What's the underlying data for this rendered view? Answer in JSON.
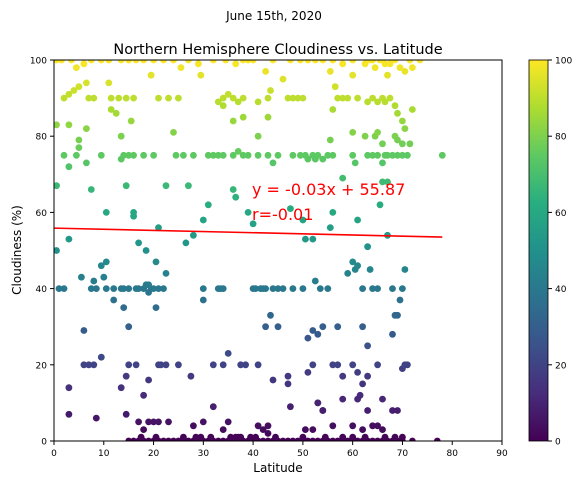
{
  "figure": {
    "suptitle": "June 15th, 2020"
  },
  "chart_data": {
    "type": "scatter",
    "title": "Northern Hemisphere Cloudiness vs. Latitude",
    "xlabel": "Latitude",
    "ylabel": "Cloudiness (%)",
    "xlim": [
      0,
      90
    ],
    "ylim": [
      0,
      100
    ],
    "xticks": [
      0,
      10,
      20,
      30,
      40,
      50,
      60,
      70,
      80,
      90
    ],
    "yticks": [
      0,
      20,
      40,
      60,
      80,
      100
    ],
    "grid": false,
    "colormap": "viridis",
    "colorbar": {
      "range": [
        0,
        100
      ],
      "ticks": [
        0,
        20,
        40,
        60,
        80,
        100
      ]
    },
    "point_color": "value of y (Cloudiness) mapped through viridis",
    "regression": {
      "slope": -0.03,
      "intercept": 55.87,
      "x_range": [
        0,
        78
      ],
      "color": "#ff0000",
      "equation_label": "y = -0.03x + 55.87",
      "r_label": "r=-0.01",
      "label_color": "#ff0000"
    },
    "points": [
      [
        0.5,
        100
      ],
      [
        1.5,
        100
      ],
      [
        3.5,
        100
      ],
      [
        4.5,
        98
      ],
      [
        6,
        99
      ],
      [
        7.5,
        100
      ],
      [
        9.5,
        100
      ],
      [
        11,
        100
      ],
      [
        13.5,
        100
      ],
      [
        15,
        100
      ],
      [
        16.5,
        100
      ],
      [
        18,
        100
      ],
      [
        20,
        100
      ],
      [
        22,
        100
      ],
      [
        24,
        100
      ],
      [
        25.5,
        98
      ],
      [
        27,
        100
      ],
      [
        29,
        99
      ],
      [
        32,
        100
      ],
      [
        34.5,
        100
      ],
      [
        36.5,
        99
      ],
      [
        38,
        100
      ],
      [
        40,
        100
      ],
      [
        42.5,
        97
      ],
      [
        44,
        100
      ],
      [
        46,
        95
      ],
      [
        47.5,
        100
      ],
      [
        49.5,
        100
      ],
      [
        51,
        100
      ],
      [
        52.5,
        100
      ],
      [
        54,
        100
      ],
      [
        56,
        100
      ],
      [
        58,
        99
      ],
      [
        60,
        100
      ],
      [
        62.5,
        99
      ],
      [
        63.5,
        100
      ],
      [
        64.5,
        98
      ],
      [
        65.5,
        100
      ],
      [
        66.5,
        99
      ],
      [
        67.5,
        99
      ],
      [
        68.5,
        100
      ],
      [
        69.5,
        98
      ],
      [
        70.5,
        97
      ],
      [
        71.5,
        100
      ],
      [
        72,
        98
      ],
      [
        73.5,
        100
      ],
      [
        55.5,
        97
      ],
      [
        60,
        96
      ],
      [
        64,
        100
      ],
      [
        39,
        100
      ],
      [
        2,
        90
      ],
      [
        3,
        91
      ],
      [
        4,
        92
      ],
      [
        5,
        93
      ],
      [
        6.5,
        94
      ],
      [
        7,
        90
      ],
      [
        8,
        90
      ],
      [
        11.5,
        90
      ],
      [
        14.5,
        90
      ],
      [
        16,
        90
      ],
      [
        21,
        90
      ],
      [
        23,
        90
      ],
      [
        25,
        90
      ],
      [
        33,
        89
      ],
      [
        34,
        90
      ],
      [
        35,
        91
      ],
      [
        36,
        90
      ],
      [
        37,
        89
      ],
      [
        38,
        90
      ],
      [
        41,
        89
      ],
      [
        43,
        90
      ],
      [
        47,
        90
      ],
      [
        48,
        90
      ],
      [
        49,
        90
      ],
      [
        50,
        90
      ],
      [
        56,
        87
      ],
      [
        57,
        90
      ],
      [
        58,
        90
      ],
      [
        59,
        90
      ],
      [
        61,
        90
      ],
      [
        63,
        89
      ],
      [
        64,
        90
      ],
      [
        65,
        89
      ],
      [
        66,
        90
      ],
      [
        66.5,
        89
      ],
      [
        67.5,
        90
      ],
      [
        68.5,
        88
      ],
      [
        69,
        86
      ],
      [
        70,
        84
      ],
      [
        70.5,
        82
      ],
      [
        72,
        87
      ],
      [
        11,
        94
      ],
      [
        13,
        90
      ],
      [
        19.5,
        96
      ],
      [
        29.5,
        96
      ],
      [
        43.5,
        92
      ],
      [
        56.5,
        93
      ],
      [
        67,
        96
      ],
      [
        0.5,
        83
      ],
      [
        3,
        83
      ],
      [
        5,
        79
      ],
      [
        6.5,
        82
      ],
      [
        11.5,
        87
      ],
      [
        12.5,
        86
      ],
      [
        13.5,
        80
      ],
      [
        15.5,
        84
      ],
      [
        24,
        81
      ],
      [
        34,
        88
      ],
      [
        36,
        84
      ],
      [
        38,
        85
      ],
      [
        41,
        80
      ],
      [
        43,
        85
      ],
      [
        60,
        81
      ],
      [
        62.5,
        80
      ],
      [
        64.5,
        80
      ],
      [
        65,
        81
      ],
      [
        66,
        78
      ],
      [
        68.5,
        80
      ],
      [
        69,
        79
      ],
      [
        70,
        78
      ],
      [
        71.5,
        78
      ],
      [
        55.5,
        79
      ],
      [
        2,
        75
      ],
      [
        3,
        72
      ],
      [
        4.5,
        75
      ],
      [
        5,
        77
      ],
      [
        6.5,
        73
      ],
      [
        9.5,
        75
      ],
      [
        13.5,
        74
      ],
      [
        14,
        75
      ],
      [
        15,
        75
      ],
      [
        16,
        75
      ],
      [
        18,
        75
      ],
      [
        20,
        75
      ],
      [
        24.5,
        75
      ],
      [
        26,
        75
      ],
      [
        28,
        75
      ],
      [
        31,
        75
      ],
      [
        32,
        75
      ],
      [
        33,
        75
      ],
      [
        34,
        75
      ],
      [
        36,
        75
      ],
      [
        37,
        76
      ],
      [
        38,
        75
      ],
      [
        39,
        75
      ],
      [
        41,
        75
      ],
      [
        43,
        75
      ],
      [
        45,
        75
      ],
      [
        48,
        75
      ],
      [
        49.5,
        75
      ],
      [
        50.5,
        75
      ],
      [
        51,
        74
      ],
      [
        52,
        75
      ],
      [
        52.5,
        74
      ],
      [
        53,
        75
      ],
      [
        54,
        74
      ],
      [
        55,
        75
      ],
      [
        56,
        75
      ],
      [
        60,
        75
      ],
      [
        60.5,
        73
      ],
      [
        63,
        75
      ],
      [
        64,
        75
      ],
      [
        65,
        75
      ],
      [
        66,
        73
      ],
      [
        66.5,
        75
      ],
      [
        67,
        75
      ],
      [
        68,
        75
      ],
      [
        69,
        75
      ],
      [
        70,
        75
      ],
      [
        71,
        75
      ],
      [
        78,
        75
      ],
      [
        7.5,
        66
      ],
      [
        14.5,
        67
      ],
      [
        22.5,
        67
      ],
      [
        36,
        66
      ],
      [
        36.5,
        64
      ],
      [
        44,
        73
      ],
      [
        10.5,
        60
      ],
      [
        16,
        60
      ],
      [
        30,
        58
      ],
      [
        31,
        62
      ],
      [
        39,
        60
      ],
      [
        40,
        57
      ],
      [
        47.5,
        61
      ],
      [
        50,
        58
      ],
      [
        56,
        60
      ],
      [
        58,
        69
      ],
      [
        65.5,
        62
      ],
      [
        66,
        68
      ],
      [
        67,
        68
      ],
      [
        61,
        58
      ],
      [
        0.5,
        67
      ],
      [
        27,
        67
      ],
      [
        16,
        59
      ],
      [
        0.5,
        50
      ],
      [
        3,
        53
      ],
      [
        5.5,
        43
      ],
      [
        7.5,
        40
      ],
      [
        8.5,
        40
      ],
      [
        9.5,
        46
      ],
      [
        10,
        43
      ],
      [
        10.5,
        47
      ],
      [
        12,
        40
      ],
      [
        13.5,
        40
      ],
      [
        14,
        35
      ],
      [
        15,
        40
      ],
      [
        17,
        40
      ],
      [
        18,
        40
      ],
      [
        18.5,
        41
      ],
      [
        19.5,
        40
      ],
      [
        20,
        40
      ],
      [
        20.5,
        47
      ],
      [
        21,
        40
      ],
      [
        22,
        40
      ],
      [
        22.5,
        44
      ],
      [
        26.5,
        52
      ],
      [
        28,
        54
      ],
      [
        30,
        40
      ],
      [
        33,
        40
      ],
      [
        33.5,
        40
      ],
      [
        34,
        40
      ],
      [
        40.5,
        40
      ],
      [
        41.5,
        40
      ],
      [
        42.5,
        40
      ],
      [
        44,
        40
      ],
      [
        45,
        40
      ],
      [
        46,
        40
      ],
      [
        48,
        40
      ],
      [
        50,
        40
      ],
      [
        50.5,
        53
      ],
      [
        52,
        53
      ],
      [
        52.5,
        42
      ],
      [
        53.5,
        40
      ],
      [
        55,
        40
      ],
      [
        55.5,
        56
      ],
      [
        59,
        44
      ],
      [
        60,
        47
      ],
      [
        60.5,
        45
      ],
      [
        61,
        46
      ],
      [
        62,
        40
      ],
      [
        63,
        51
      ],
      [
        63.5,
        45
      ],
      [
        64,
        40
      ],
      [
        65,
        40
      ],
      [
        67,
        54
      ],
      [
        68,
        40
      ],
      [
        69,
        33
      ],
      [
        69.5,
        37
      ],
      [
        70,
        40
      ],
      [
        70.5,
        45
      ],
      [
        2,
        40
      ],
      [
        1,
        40
      ],
      [
        8,
        42
      ],
      [
        17,
        52
      ],
      [
        18.5,
        50
      ],
      [
        19,
        41
      ],
      [
        20.5,
        35
      ],
      [
        21,
        56
      ],
      [
        42,
        40
      ],
      [
        16.5,
        40
      ],
      [
        19,
        39
      ],
      [
        10.5,
        40
      ],
      [
        14,
        40
      ],
      [
        40,
        40
      ],
      [
        6,
        29
      ],
      [
        15,
        30
      ],
      [
        30,
        37
      ],
      [
        42.5,
        30
      ],
      [
        43.5,
        33
      ],
      [
        45,
        30
      ],
      [
        51,
        27
      ],
      [
        52,
        29
      ],
      [
        53,
        28
      ],
      [
        54,
        30
      ],
      [
        57,
        30
      ],
      [
        62,
        30
      ],
      [
        63,
        25
      ],
      [
        68,
        28
      ],
      [
        68.5,
        33
      ],
      [
        12,
        37
      ],
      [
        6,
        20
      ],
      [
        7,
        20
      ],
      [
        8,
        20
      ],
      [
        9.5,
        22
      ],
      [
        13.5,
        14
      ],
      [
        14.5,
        17
      ],
      [
        15,
        20
      ],
      [
        16.5,
        20
      ],
      [
        18,
        12
      ],
      [
        19,
        16
      ],
      [
        21,
        20
      ],
      [
        21.5,
        20
      ],
      [
        27.5,
        17
      ],
      [
        32,
        20
      ],
      [
        34,
        20
      ],
      [
        35,
        23
      ],
      [
        37.5,
        20
      ],
      [
        38.5,
        20
      ],
      [
        41,
        20
      ],
      [
        47,
        17
      ],
      [
        51,
        18
      ],
      [
        52,
        20
      ],
      [
        53,
        10
      ],
      [
        54,
        8
      ],
      [
        56,
        20
      ],
      [
        58,
        17
      ],
      [
        60,
        20
      ],
      [
        61,
        18
      ],
      [
        61.5,
        12
      ],
      [
        62,
        15
      ],
      [
        63,
        17
      ],
      [
        65,
        20
      ],
      [
        66,
        11
      ],
      [
        69,
        8
      ],
      [
        70,
        19
      ],
      [
        70.5,
        20
      ],
      [
        71,
        20
      ],
      [
        3,
        14
      ],
      [
        22.5,
        20
      ],
      [
        25,
        20
      ],
      [
        44,
        16
      ],
      [
        47,
        15
      ],
      [
        57,
        20
      ],
      [
        3,
        7
      ],
      [
        8.5,
        6
      ],
      [
        14.5,
        7
      ],
      [
        17,
        5
      ],
      [
        18,
        3
      ],
      [
        19,
        5
      ],
      [
        20,
        5
      ],
      [
        21,
        5
      ],
      [
        23,
        5
      ],
      [
        28,
        4
      ],
      [
        30,
        5
      ],
      [
        32,
        9
      ],
      [
        34,
        3
      ],
      [
        35,
        5
      ],
      [
        41,
        4
      ],
      [
        42,
        3
      ],
      [
        43,
        4
      ],
      [
        47.5,
        9
      ],
      [
        50.5,
        3
      ],
      [
        52,
        3
      ],
      [
        53,
        10
      ],
      [
        54,
        8
      ],
      [
        56,
        4
      ],
      [
        58,
        11
      ],
      [
        60,
        4
      ],
      [
        61,
        11
      ],
      [
        62,
        3
      ],
      [
        63,
        8
      ],
      [
        64,
        4
      ],
      [
        65,
        4
      ],
      [
        66,
        3
      ],
      [
        68,
        8
      ],
      [
        70,
        1
      ],
      [
        37.5,
        1
      ],
      [
        43,
        2
      ],
      [
        15,
        0
      ],
      [
        16,
        0
      ],
      [
        17,
        0
      ],
      [
        18,
        0
      ],
      [
        19,
        0
      ],
      [
        20,
        0
      ],
      [
        21,
        0
      ],
      [
        22,
        0
      ],
      [
        23,
        0
      ],
      [
        24,
        0
      ],
      [
        25,
        0
      ],
      [
        26,
        0
      ],
      [
        27,
        0
      ],
      [
        28,
        0
      ],
      [
        29,
        0
      ],
      [
        30,
        0
      ],
      [
        31,
        0
      ],
      [
        32,
        0
      ],
      [
        33,
        0
      ],
      [
        34,
        0
      ],
      [
        35,
        0
      ],
      [
        36,
        0
      ],
      [
        37,
        0
      ],
      [
        38,
        0
      ],
      [
        39,
        0
      ],
      [
        40,
        0
      ],
      [
        41,
        0
      ],
      [
        42,
        0
      ],
      [
        43,
        0
      ],
      [
        44,
        0
      ],
      [
        45,
        0
      ],
      [
        46,
        0
      ],
      [
        47,
        0
      ],
      [
        48,
        0
      ],
      [
        49,
        0
      ],
      [
        50,
        0
      ],
      [
        51,
        0
      ],
      [
        52,
        0
      ],
      [
        53,
        0
      ],
      [
        54,
        0
      ],
      [
        55,
        0
      ],
      [
        56,
        0
      ],
      [
        57,
        0
      ],
      [
        58,
        0
      ],
      [
        59,
        0
      ],
      [
        60,
        0
      ],
      [
        61,
        0
      ],
      [
        62,
        0
      ],
      [
        63,
        0
      ],
      [
        64,
        0
      ],
      [
        65,
        0
      ],
      [
        66,
        0
      ],
      [
        67,
        0
      ],
      [
        68,
        0
      ],
      [
        69,
        0
      ],
      [
        70,
        0
      ],
      [
        72,
        0
      ],
      [
        77,
        0
      ],
      [
        17.5,
        1
      ],
      [
        20.5,
        1
      ],
      [
        26,
        1
      ],
      [
        28.5,
        1
      ],
      [
        29.5,
        1
      ],
      [
        31.5,
        1
      ],
      [
        35.5,
        1
      ],
      [
        36.5,
        1
      ],
      [
        37,
        1
      ],
      [
        39.5,
        1
      ],
      [
        40.5,
        1
      ],
      [
        44.5,
        1
      ],
      [
        50,
        1
      ],
      [
        54.5,
        1
      ],
      [
        58,
        1
      ],
      [
        60,
        1
      ],
      [
        62.5,
        1
      ],
      [
        66.5,
        1
      ],
      [
        68.5,
        1
      ]
    ]
  }
}
